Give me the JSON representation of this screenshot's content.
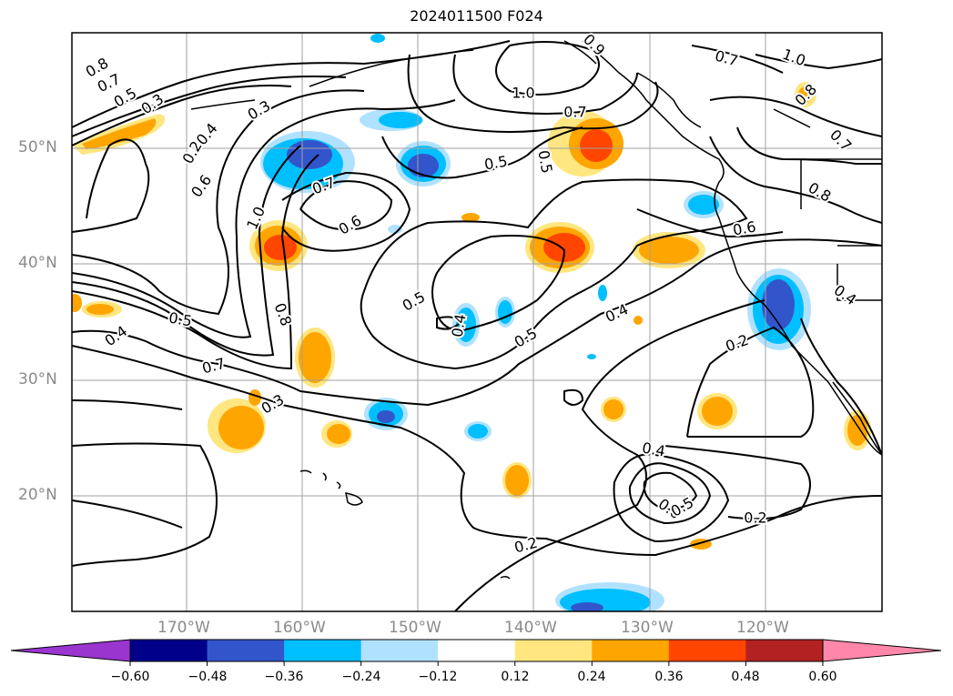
{
  "title": "2024011500 F024",
  "lat_labels": [
    "50°N",
    "40°N",
    "30°N",
    "20°N"
  ],
  "lon_labels": [
    "170°W",
    "160°W",
    "150°W",
    "140°W",
    "130°W",
    "120°W"
  ],
  "contour_labels": [
    "0.8",
    "0.7",
    "0.5",
    "0.3",
    "0.3",
    "0.2",
    "0.4",
    "0.6",
    "1.0",
    "0.7",
    "0.6",
    "1.0",
    "0.7",
    "0.5",
    "0.5",
    "0.9",
    "0.7",
    "1.0",
    "0.8",
    "0.7",
    "0.8",
    "0.6",
    "0.4",
    "0.5",
    "0.7",
    "0.8",
    "0.3",
    "0.5",
    "0.4",
    "0.5",
    "0.4",
    "0.2",
    "0.4",
    "0.6",
    "0.5",
    "0.2",
    "0.2",
    "0.4"
  ],
  "colorbar": {
    "ticks": [
      "−0.60",
      "−0.48",
      "−0.36",
      "−0.24",
      "−0.12",
      "0.12",
      "0.24",
      "0.36",
      "0.48",
      "0.60"
    ],
    "colors": [
      "#9a35d0",
      "#00008b",
      "#3355cc",
      "#00bfff",
      "#b0e2ff",
      "#ffffff",
      "#ffe680",
      "#ffa500",
      "#ff4500",
      "#b22222",
      "#ff88aa"
    ]
  }
}
